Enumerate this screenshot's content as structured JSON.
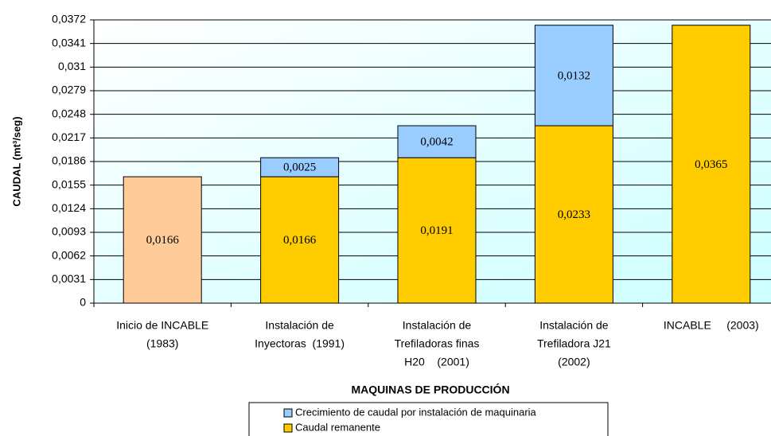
{
  "chart_data": {
    "type": "stacked-bar",
    "ylabel": "CAUDAL (mt³/seg)",
    "xlabel": "MAQUINAS DE PRODUCCIÓN",
    "categories": [
      [
        "Inicio de INCABLE",
        "(1983)"
      ],
      [
        "Instalación de",
        "Inyectoras  (1991)"
      ],
      [
        "Instalación de",
        "Trefiladoras finas",
        "H20    (2001)"
      ],
      [
        "Instalación de",
        "Trefiladora J21",
        "(2002)"
      ],
      [
        "INCABLE     (2003)"
      ]
    ],
    "series": [
      {
        "name": "Caudal remanente",
        "color": "#ffcc00",
        "colors": [
          "#ffcc99",
          "#ffcc00",
          "#ffcc00",
          "#ffcc00",
          "#ffcc00"
        ],
        "values": [
          0.0166,
          0.0166,
          0.0191,
          0.0233,
          0.0365
        ],
        "value_labels": [
          "0,0166",
          "0,0166",
          "0,0191",
          "0,0233",
          "0,0365"
        ]
      },
      {
        "name": "Crecimiento de caudal por instalación de maquinaria",
        "color": "#99ccff",
        "values": [
          null,
          0.0025,
          0.0042,
          0.0132,
          null
        ],
        "value_labels": [
          null,
          "0,0025",
          "0,0042",
          "0,0132",
          null
        ]
      }
    ],
    "ylim": [
      0,
      0.0372
    ],
    "yticks": [
      0,
      {
        "value": 0.0031,
        "label": "0,0031"
      },
      {
        "value": 0.0062,
        "label": "0,0062"
      },
      {
        "value": 0.0093,
        "label": "0,0093"
      },
      {
        "value": 0.0124,
        "label": "0,0124"
      },
      {
        "value": 0.0155,
        "label": "0,0155"
      },
      {
        "value": 0.0186,
        "label": "0,0186"
      },
      {
        "value": 0.0217,
        "label": "0,0217"
      },
      {
        "value": 0.0248,
        "label": "0,0248"
      },
      {
        "value": 0.0279,
        "label": "0,0279"
      },
      {
        "value": 0.031,
        "label": "0,031"
      },
      {
        "value": 0.0341,
        "label": "0,0341"
      },
      {
        "value": 0.0372,
        "label": "0,0372"
      }
    ],
    "grid": true
  }
}
